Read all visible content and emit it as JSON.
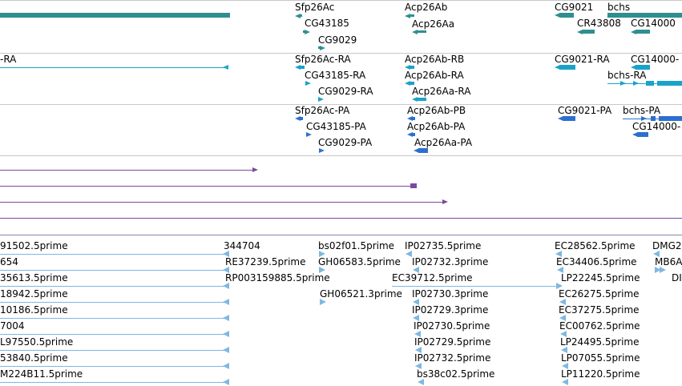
{
  "colors": {
    "gene": "#2f8f8f",
    "transcript": "#1aa3c8",
    "protein": "#2d6fd0",
    "purple": "#7a4aa0",
    "est": "#7fb8e0",
    "separator": "#c8c8c8"
  },
  "genes": {
    "sfp26ac": "Sfp26Ac",
    "cg43185": "CG43185",
    "cg9029": "CG9029",
    "acp26ab": "Acp26Ab",
    "acp26aa": "Acp26Aa",
    "cg9021": "CG9021",
    "bchs": "bchs",
    "cr43808": "CR43808",
    "cg14000": "CG14000"
  },
  "transcripts": {
    "left_ra": "-RA",
    "sfp26ac_ra": "Sfp26Ac-RA",
    "acp26ab_rb": "Acp26Ab-RB",
    "cg9021_ra": "CG9021-RA",
    "cg14000_ra": "CG14000-",
    "cg43185_ra": "CG43185-RA",
    "acp26ab_ra": "Acp26Ab-RA",
    "bchs_ra": "bchs-RA",
    "cg9029_ra": "CG9029-RA",
    "acp26aa_ra": "Acp26Aa-RA"
  },
  "proteins": {
    "sfp26ac_pa": "Sfp26Ac-PA",
    "acp26ab_pb": "Acp26Ab-PB",
    "cg9021_pa": "CG9021-PA",
    "bchs_pa": "bchs-PA",
    "cg43185_pa": "CG43185-PA",
    "acp26ab_pa": "Acp26Ab-PA",
    "cg14000_pa": "CG14000-",
    "cg9029_pa": "CG9029-PA",
    "acp26aa_pa": "Acp26Aa-PA"
  },
  "ests": {
    "col1": [
      "91502.5prime",
      "654",
      "35613.5prime",
      "18942.5prime",
      "10186.5prime",
      "7004",
      "L97550.5prime",
      "53840.5prime",
      "M224B11.5prime"
    ],
    "c344704": "344704",
    "re37239": "RE37239.5prime",
    "rp003159885": "RP003159885.5prime",
    "bs02f01": "bs02f01.5prime",
    "gh06583": "GH06583.5prime",
    "gh06521": "GH06521.3prime",
    "ip02735": "IP02735.5prime",
    "ip02732": "IP02732.3prime",
    "ec39712": "EC39712.5prime",
    "ip02730_3": "IP02730.3prime",
    "ip02729_3": "IP02729.3prime",
    "ip02730_5": "IP02730.5prime",
    "ip02729_5": "IP02729.5prime",
    "ip02732_5": "IP02732.5prime",
    "bs38c02": "bs38c02.5prime",
    "ec28562": "EC28562.5prime",
    "ec34406": "EC34406.5prime",
    "lp22245": "LP22245.5prime",
    "ec26275": "EC26275.5prime",
    "ec37275": "EC37275.5prime",
    "ec00762": "EC00762.5prime",
    "lp24495": "LP24495.5prime",
    "lp07055": "LP07055.5prime",
    "lp11220": "LP11220.5prime",
    "dmg2": "DMG2",
    "mb6a": "MB6A",
    "dm": "DI"
  }
}
